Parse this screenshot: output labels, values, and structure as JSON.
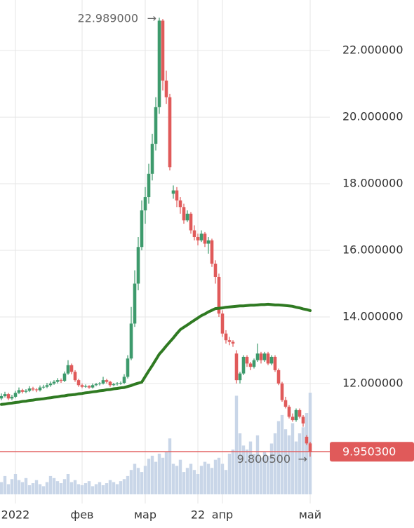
{
  "chart_data": {
    "type": "candlestick",
    "ylim": [
      8.67,
      23.52
    ],
    "yticks": [
      {
        "value": 12,
        "label": "12.000000"
      },
      {
        "value": 14,
        "label": "14.000000"
      },
      {
        "value": 16,
        "label": "16.000000"
      },
      {
        "value": 18,
        "label": "18.000000"
      },
      {
        "value": 20,
        "label": "20.000000"
      },
      {
        "value": 22,
        "label": "22.000000"
      }
    ],
    "xlim": [
      -0.4,
      93.6
    ],
    "xticks": [
      {
        "value": 4,
        "label": "2022"
      },
      {
        "value": 23,
        "label": "фев"
      },
      {
        "value": 41,
        "label": "мар"
      },
      {
        "value": 56,
        "label": "22"
      },
      {
        "value": 63,
        "label": "апр"
      },
      {
        "value": 88,
        "label": "май"
      }
    ],
    "grid": true,
    "up_color": "#3d9a6c",
    "down_color": "#e05a5a",
    "ma_color": "#2f7a22",
    "volume_color": "#c9d6e8",
    "open": [
      11.55,
      11.62,
      11.68,
      11.55,
      11.6,
      11.72,
      11.8,
      11.75,
      11.78,
      11.85,
      11.82,
      11.8,
      11.88,
      11.9,
      11.95,
      12.0,
      12.05,
      12.1,
      12.08,
      12.3,
      12.55,
      12.35,
      12.1,
      11.95,
      11.9,
      11.92,
      11.88,
      11.95,
      11.98,
      12.0,
      12.1,
      12.05,
      11.95,
      11.98,
      12.0,
      12.02,
      12.2,
      12.75,
      13.8,
      15.0,
      16.1,
      17.2,
      17.6,
      18.3,
      19.2,
      20.3,
      22.9,
      21.1,
      20.6,
      17.7,
      17.8,
      17.5,
      17.3,
      16.9,
      17.1,
      16.6,
      16.4,
      16.3,
      16.5,
      16.2,
      16.3,
      15.6,
      15.2,
      14.1,
      13.5,
      13.3,
      13.25,
      12.9,
      12.1,
      12.3,
      12.8,
      12.6,
      12.5,
      12.7,
      12.9,
      12.7,
      12.9,
      12.6,
      12.8,
      12.4,
      12.0,
      11.5,
      11.3,
      11.0,
      10.9,
      11.2,
      11.0,
      10.4,
      10.2
    ],
    "high": [
      11.7,
      11.75,
      11.72,
      11.66,
      11.78,
      11.88,
      11.84,
      11.83,
      11.92,
      11.9,
      11.86,
      11.94,
      11.96,
      12.02,
      12.06,
      12.1,
      12.16,
      12.15,
      12.36,
      12.7,
      12.6,
      12.4,
      12.14,
      12.0,
      11.97,
      11.95,
      12.0,
      12.02,
      12.04,
      12.2,
      12.14,
      12.08,
      12.02,
      12.04,
      12.06,
      12.28,
      12.85,
      14.3,
      15.4,
      16.4,
      17.5,
      17.9,
      18.6,
      19.5,
      20.6,
      22.989,
      22.95,
      21.4,
      20.7,
      17.95,
      17.9,
      17.6,
      17.4,
      17.2,
      17.15,
      16.75,
      16.5,
      16.6,
      16.55,
      16.4,
      16.35,
      15.7,
      15.3,
      14.2,
      13.6,
      13.4,
      13.3,
      13.0,
      12.35,
      12.85,
      12.85,
      12.65,
      12.75,
      13.2,
      12.95,
      12.95,
      12.95,
      12.85,
      12.85,
      12.45,
      12.05,
      11.6,
      11.35,
      11.1,
      11.25,
      11.25,
      11.05,
      10.45,
      10.25
    ],
    "low": [
      11.5,
      11.58,
      11.5,
      11.5,
      11.56,
      11.68,
      11.7,
      11.71,
      11.74,
      11.77,
      11.74,
      11.76,
      11.84,
      11.86,
      11.9,
      11.96,
      12.0,
      12.02,
      12.04,
      12.26,
      12.28,
      12.05,
      11.9,
      11.86,
      11.87,
      11.84,
      11.85,
      11.92,
      11.94,
      11.97,
      12.0,
      11.9,
      11.92,
      11.94,
      11.96,
      11.98,
      12.15,
      12.7,
      13.7,
      14.8,
      16.0,
      16.8,
      17.4,
      18.1,
      19.0,
      20.1,
      20.8,
      20.4,
      18.4,
      17.55,
      17.3,
      17.1,
      16.8,
      16.85,
      16.5,
      16.3,
      16.15,
      16.25,
      16.1,
      15.9,
      15.5,
      15.0,
      14.0,
      13.4,
      13.2,
      13.15,
      13.1,
      12.0,
      12.0,
      12.25,
      12.5,
      12.4,
      12.45,
      12.65,
      12.6,
      12.65,
      12.55,
      12.55,
      12.35,
      11.95,
      11.45,
      11.25,
      10.95,
      10.85,
      10.85,
      10.95,
      10.7,
      10.15,
      9.8005
    ],
    "close": [
      11.62,
      11.68,
      11.55,
      11.6,
      11.72,
      11.8,
      11.75,
      11.78,
      11.85,
      11.82,
      11.8,
      11.88,
      11.9,
      11.95,
      12.0,
      12.05,
      12.1,
      12.08,
      12.3,
      12.55,
      12.35,
      12.1,
      11.95,
      11.9,
      11.92,
      11.88,
      11.95,
      11.98,
      12.0,
      12.1,
      12.05,
      11.95,
      11.98,
      12.0,
      12.02,
      12.2,
      12.75,
      13.8,
      15.0,
      16.1,
      17.2,
      17.6,
      18.3,
      19.2,
      20.3,
      22.9,
      21.1,
      20.6,
      18.5,
      17.8,
      17.5,
      17.3,
      16.9,
      17.1,
      16.6,
      16.4,
      16.3,
      16.5,
      16.2,
      16.3,
      15.6,
      15.2,
      14.1,
      13.5,
      13.3,
      13.25,
      13.2,
      12.1,
      12.3,
      12.8,
      12.6,
      12.5,
      12.7,
      12.9,
      12.7,
      12.9,
      12.6,
      12.8,
      12.4,
      12.0,
      11.5,
      11.3,
      11.0,
      10.9,
      11.2,
      11.0,
      10.8,
      10.2,
      9.9503
    ],
    "ma": [
      11.37,
      11.38,
      11.4,
      11.41,
      11.43,
      11.44,
      11.46,
      11.47,
      11.49,
      11.5,
      11.52,
      11.53,
      11.54,
      11.56,
      11.57,
      11.59,
      11.6,
      11.62,
      11.63,
      11.65,
      11.66,
      11.67,
      11.69,
      11.7,
      11.72,
      11.73,
      11.75,
      11.76,
      11.78,
      11.79,
      11.81,
      11.82,
      11.84,
      11.85,
      11.87,
      11.88,
      11.91,
      11.94,
      11.98,
      12.01,
      12.04,
      12.21,
      12.38,
      12.54,
      12.71,
      12.88,
      13.0,
      13.13,
      13.25,
      13.37,
      13.5,
      13.62,
      13.69,
      13.76,
      13.83,
      13.9,
      13.97,
      14.04,
      14.09,
      14.15,
      14.2,
      14.25,
      14.26,
      14.27,
      14.29,
      14.3,
      14.31,
      14.32,
      14.33,
      14.33,
      14.34,
      14.35,
      14.35,
      14.36,
      14.37,
      14.37,
      14.38,
      14.37,
      14.36,
      14.36,
      14.35,
      14.34,
      14.33,
      14.32,
      14.29,
      14.27,
      14.24,
      14.22,
      14.19
    ],
    "volume": [
      12,
      18,
      10,
      15,
      20,
      14,
      12,
      16,
      9,
      11,
      14,
      10,
      8,
      12,
      18,
      16,
      13,
      11,
      15,
      20,
      12,
      14,
      10,
      9,
      11,
      13,
      8,
      10,
      12,
      9,
      11,
      14,
      12,
      10,
      13,
      15,
      18,
      24,
      30,
      26,
      22,
      28,
      35,
      38,
      32,
      40,
      36,
      42,
      55,
      30,
      28,
      34,
      22,
      26,
      30,
      24,
      20,
      28,
      32,
      30,
      26,
      34,
      36,
      30,
      24,
      40,
      44,
      97,
      60,
      48,
      44,
      52,
      40,
      58,
      36,
      42,
      38,
      50,
      60,
      72,
      78,
      64,
      58,
      70,
      52,
      60,
      66,
      80,
      100
    ],
    "annotations": [
      {
        "text": "22.989000",
        "value": 22.989
      },
      {
        "text": "9.800500",
        "value": 9.8005
      }
    ],
    "last_price": {
      "value": 9.9503,
      "label": "9.950300"
    }
  }
}
